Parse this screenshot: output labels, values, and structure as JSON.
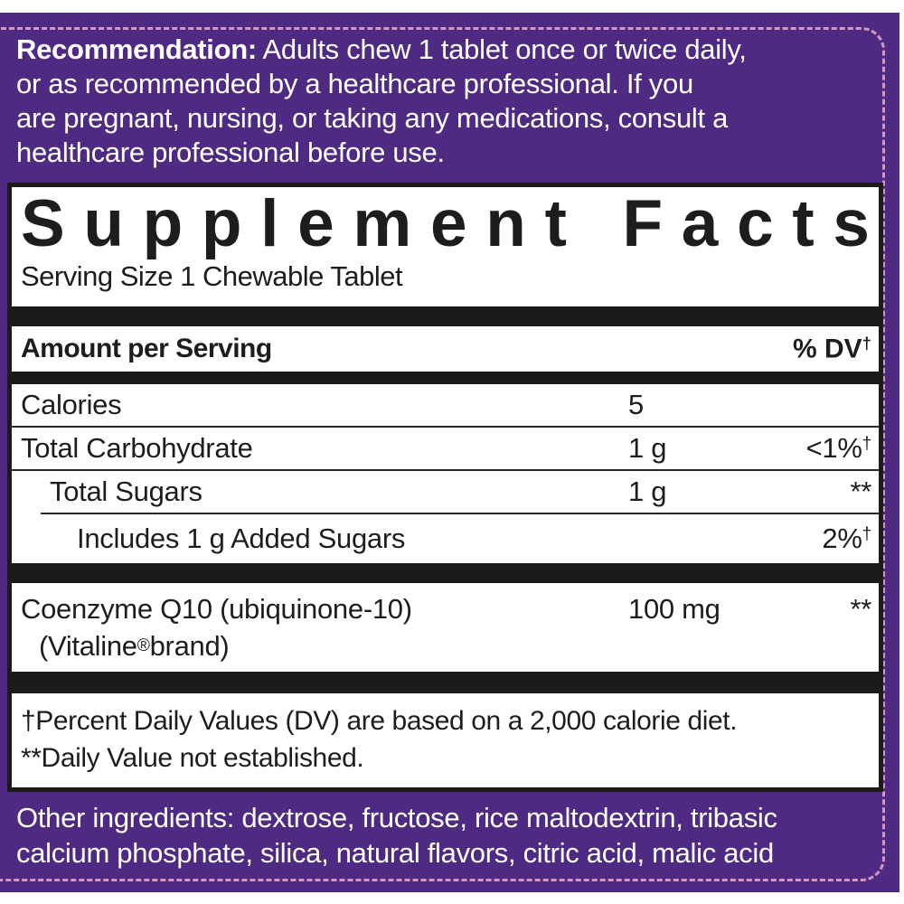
{
  "colors": {
    "background_purple": "#4f2a82",
    "dashed_border_pink": "#d697be",
    "panel_black": "#1b1b19",
    "text_white": "#ffffff"
  },
  "recommendation": {
    "bold_label": "Recommendation:",
    "line1_rest": " Adults chew 1 tablet once or twice daily,",
    "line2": "or as recommended by a healthcare professional. If you",
    "line3": "are pregnant, nursing, or taking any medications, consult a",
    "line4": "healthcare professional before use."
  },
  "panel": {
    "title": "Supplement Facts",
    "serving_size": "Serving Size 1 Chewable Tablet",
    "header": {
      "left": "Amount per Serving",
      "right_main": "% DV",
      "right_sup": "†"
    },
    "rows": [
      {
        "name": "Calories",
        "amount": "5",
        "dv": "",
        "dv_sup": ""
      },
      {
        "name": "Total Carbohydrate",
        "amount": "1 g",
        "dv": "<1%",
        "dv_sup": "†"
      },
      {
        "name": "Total Sugars",
        "amount": "1 g",
        "dv": "**",
        "dv_sup": ""
      },
      {
        "name": "Includes 1 g Added Sugars",
        "amount": "",
        "dv": "2%",
        "dv_sup": "†"
      }
    ],
    "coq10": {
      "name": "Coenzyme Q10 (ubiquinone-10)",
      "line2_pre": "(Vitaline",
      "line2_sup": "®",
      "line2_post": " brand)",
      "amount": "100 mg",
      "dv": "**"
    },
    "footnote1": "†Percent Daily Values (DV) are based on a 2,000 calorie diet.",
    "footnote2": "**Daily Value not established."
  },
  "other_ingredients": {
    "line1": "Other ingredients: dextrose, fructose, rice maltodextrin, tribasic",
    "line2": "calcium phosphate, silica, natural flavors, citric acid, malic acid"
  }
}
